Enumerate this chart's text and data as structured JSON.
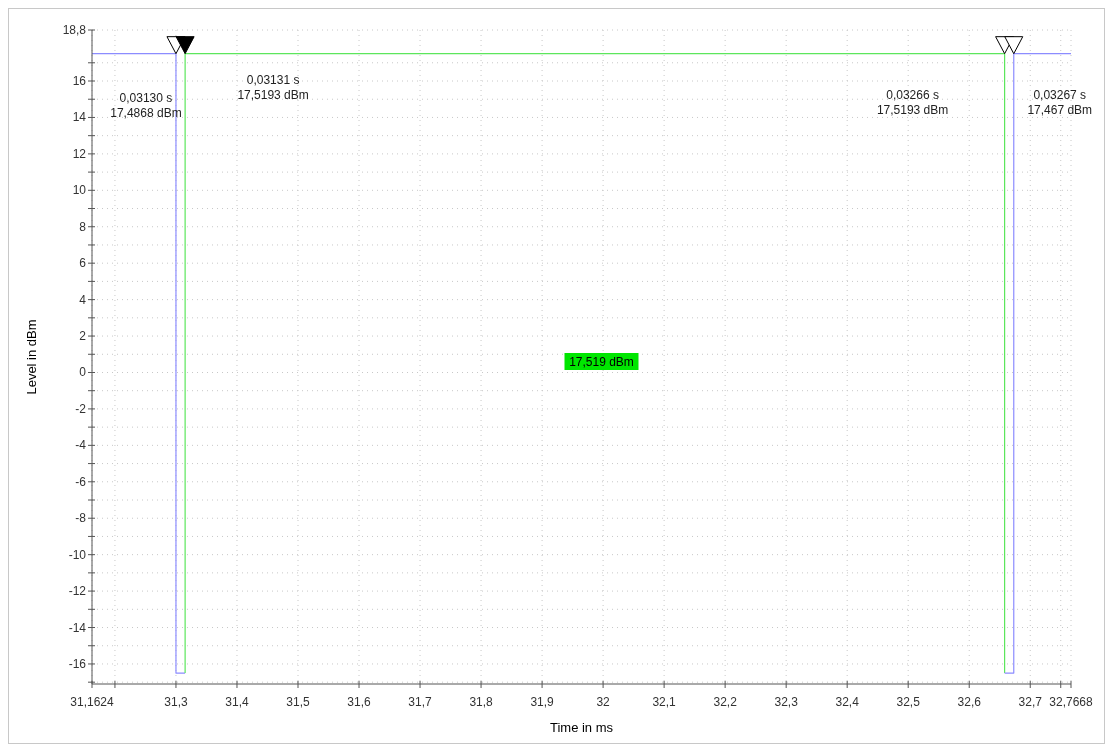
{
  "chart_data": {
    "type": "line",
    "xlabel": "Time in ms",
    "ylabel": "Level in dBm",
    "xlim": [
      31.1624,
      32.7668
    ],
    "ylim": [
      -17.1,
      18.8
    ],
    "xticks": [
      {
        "value": 31.1624,
        "label": "31,1624"
      },
      {
        "value": 31.2,
        "label": null
      },
      {
        "value": 31.3,
        "label": "31,3"
      },
      {
        "value": 31.4,
        "label": "31,4"
      },
      {
        "value": 31.5,
        "label": "31,5"
      },
      {
        "value": 31.6,
        "label": "31,6"
      },
      {
        "value": 31.7,
        "label": "31,7"
      },
      {
        "value": 31.8,
        "label": "31,8"
      },
      {
        "value": 31.9,
        "label": "31,9"
      },
      {
        "value": 32,
        "label": "32"
      },
      {
        "value": 32.1,
        "label": "32,1"
      },
      {
        "value": 32.2,
        "label": "32,2"
      },
      {
        "value": 32.3,
        "label": "32,3"
      },
      {
        "value": 32.4,
        "label": "32,4"
      },
      {
        "value": 32.5,
        "label": "32,5"
      },
      {
        "value": 32.6,
        "label": "32,6"
      },
      {
        "value": 32.7,
        "label": "32,7"
      },
      {
        "value": 32.75,
        "label": null
      },
      {
        "value": 32.7668,
        "label": "32,7668"
      }
    ],
    "yticks": [
      {
        "value": -17,
        "label": null
      },
      -16,
      {
        "value": -15,
        "label": null
      },
      -14,
      {
        "value": -13,
        "label": null
      },
      -12,
      {
        "value": -11,
        "label": null
      },
      -10,
      {
        "value": -9,
        "label": null
      },
      -8,
      {
        "value": -7,
        "label": null
      },
      -6,
      {
        "value": -5,
        "label": null
      },
      -4,
      {
        "value": -3,
        "label": null
      },
      -2,
      {
        "value": -1,
        "label": null
      },
      0,
      {
        "value": 1,
        "label": null
      },
      2,
      {
        "value": 3,
        "label": null
      },
      4,
      {
        "value": 5,
        "label": null
      },
      6,
      {
        "value": 7,
        "label": null
      },
      8,
      {
        "value": 9,
        "label": null
      },
      10,
      {
        "value": 11,
        "label": null
      },
      12,
      {
        "value": 13,
        "label": null
      },
      14,
      {
        "value": 15,
        "label": null
      },
      16,
      {
        "value": 17,
        "label": null
      },
      {
        "value": 18.8,
        "label": "18,8"
      }
    ],
    "grid": true,
    "marker": "none",
    "line_style": "solid",
    "series": [
      {
        "color": "#8c8cff",
        "x": [
          31.1624,
          31.3,
          31.3,
          31.315
        ],
        "values": [
          17.5,
          17.5,
          -16.5,
          -16.5
        ]
      },
      {
        "color": "#5ce65c",
        "x": [
          31.315,
          31.315,
          32.658,
          32.658
        ],
        "values": [
          -16.5,
          17.5,
          17.5,
          -16.5
        ]
      },
      {
        "color": "#8c8cff",
        "x": [
          32.658,
          32.673,
          32.673,
          32.7668
        ],
        "values": [
          -16.5,
          -16.5,
          17.5,
          17.5
        ]
      }
    ],
    "annotations": [
      "0,03130 s\n17,4868 dBm",
      "0,03131 s\n17,5193 dBm",
      "0,03266 s\n17,5193 dBm",
      "0,03267 s\n17,467 dBm",
      "17,519 dBm"
    ]
  }
}
